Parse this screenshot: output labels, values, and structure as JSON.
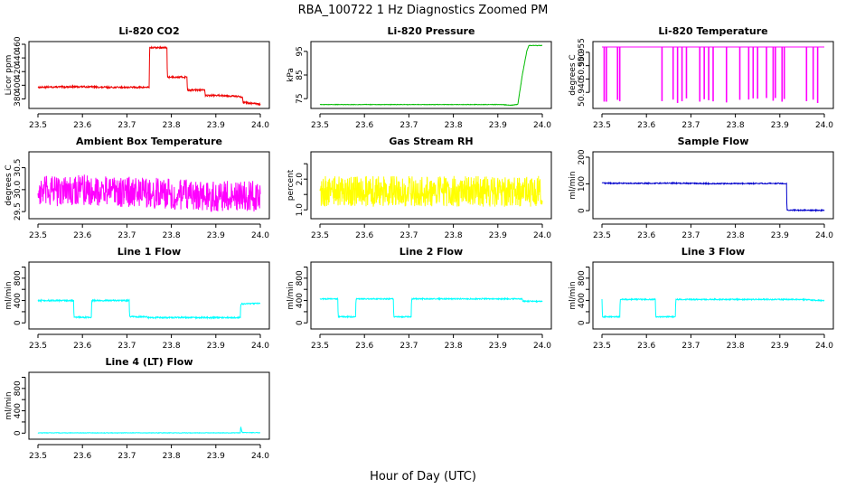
{
  "main_title": "RBA_100722  1 Hz Diagnostics Zoomed PM",
  "x_axis_label": "Hour of Day (UTC)",
  "colors": {
    "red": "#ee0000",
    "green": "#00bb00",
    "magenta": "#ff00ff",
    "yellow": "#ffff00",
    "blue": "#0000cc",
    "cyan": "#00ffff"
  },
  "chart_data": [
    {
      "type": "line",
      "title": "Li-820 CO2",
      "ylabel": "Licor ppm",
      "color": "red",
      "xlim": [
        23.5,
        24.0
      ],
      "ylim": [
        370,
        460
      ],
      "x_ticks": [
        23.5,
        23.6,
        23.7,
        23.8,
        23.9,
        24.0
      ],
      "y_ticks": [
        380,
        400,
        420,
        440,
        460
      ],
      "x_tick_labels": [
        "23.5",
        "23.6",
        "23.7",
        "23.8",
        "23.9",
        "24.0"
      ],
      "y_tick_labels": [
        "380",
        "400",
        "420",
        "440",
        "460"
      ],
      "noise": 1.2,
      "segments": [
        [
          23.5,
          397
        ],
        [
          23.6,
          398
        ],
        [
          23.65,
          397
        ],
        [
          23.75,
          397
        ],
        [
          23.751,
          455
        ],
        [
          23.79,
          455
        ],
        [
          23.791,
          412
        ],
        [
          23.835,
          412
        ],
        [
          23.836,
          393
        ],
        [
          23.875,
          393
        ],
        [
          23.876,
          385
        ],
        [
          23.92,
          385
        ],
        [
          23.96,
          383
        ],
        [
          23.961,
          375
        ],
        [
          24.0,
          372
        ]
      ]
    },
    {
      "type": "line",
      "title": "Li-820 Pressure",
      "ylabel": "kPa",
      "color": "green",
      "xlim": [
        23.5,
        24.0
      ],
      "ylim": [
        72,
        98
      ],
      "x_ticks": [
        23.5,
        23.6,
        23.7,
        23.8,
        23.9,
        24.0
      ],
      "y_ticks": [
        75,
        85,
        95
      ],
      "x_tick_labels": [
        "23.5",
        "23.6",
        "23.7",
        "23.8",
        "23.9",
        "24.0"
      ],
      "y_tick_labels": [
        "75",
        "85",
        "95"
      ],
      "noise": 0.1,
      "segments": [
        [
          23.5,
          72.5
        ],
        [
          23.91,
          72.5
        ],
        [
          23.93,
          72.2
        ],
        [
          23.945,
          72.6
        ],
        [
          23.955,
          85
        ],
        [
          23.965,
          95
        ],
        [
          23.97,
          97.5
        ],
        [
          24.0,
          97.5
        ]
      ]
    },
    {
      "type": "line",
      "title": "Li-820 Temperature",
      "ylabel": "degrees C",
      "color": "magenta",
      "xlim": [
        23.5,
        24.0
      ],
      "ylim": [
        50.935,
        50.958
      ],
      "x_ticks": [
        23.5,
        23.6,
        23.7,
        23.8,
        23.9,
        24.0
      ],
      "y_ticks": [
        50.94,
        50.945,
        50.95,
        50.955
      ],
      "x_tick_labels": [
        "23.5",
        "23.6",
        "23.7",
        "23.8",
        "23.9",
        "24.0"
      ],
      "y_tick_labels": [
        "50.940",
        "",
        "50.950",
        "50.955"
      ],
      "noise": 0,
      "segments": [
        [
          23.5,
          50.957
        ],
        [
          24.0,
          50.957
        ]
      ]
    },
    {
      "type": "line",
      "title": "Ambient Box Temperature",
      "ylabel": "degrees C",
      "color": "magenta",
      "xlim": [
        23.5,
        24.0
      ],
      "ylim": [
        29.4,
        30.8
      ],
      "x_ticks": [
        23.5,
        23.6,
        23.7,
        23.8,
        23.9,
        24.0
      ],
      "y_ticks": [
        29.5,
        30.0,
        30.5
      ],
      "x_tick_labels": [
        "23.5",
        "23.6",
        "23.7",
        "23.8",
        "23.9",
        "24.0"
      ],
      "y_tick_labels": [
        "29.5",
        "30.0",
        "30.5"
      ],
      "noise": 0.35,
      "segments": [
        [
          23.5,
          29.95
        ],
        [
          23.6,
          30.0
        ],
        [
          23.7,
          29.95
        ],
        [
          23.8,
          29.9
        ],
        [
          23.9,
          29.85
        ],
        [
          24.0,
          29.85
        ]
      ]
    },
    {
      "type": "line",
      "title": "Gas Stream RH",
      "ylabel": "percent",
      "color": "yellow",
      "xlim": [
        23.5,
        24.0
      ],
      "ylim": [
        0.8,
        2.8
      ],
      "x_ticks": [
        23.5,
        23.6,
        23.7,
        23.8,
        23.9,
        24.0
      ],
      "y_ticks": [
        1.0,
        1.5,
        2.0,
        2.5
      ],
      "x_tick_labels": [
        "23.5",
        "23.6",
        "23.7",
        "23.8",
        "23.9",
        "24.0"
      ],
      "y_tick_labels": [
        "1.0",
        "",
        "2.0",
        ""
      ],
      "noise": 0.5,
      "segments": [
        [
          23.5,
          1.6
        ],
        [
          24.0,
          1.6
        ]
      ]
    },
    {
      "type": "line",
      "title": "Sample Flow",
      "ylabel": "ml/min",
      "color": "blue",
      "xlim": [
        23.5,
        24.0
      ],
      "ylim": [
        -20,
        210
      ],
      "x_ticks": [
        23.5,
        23.6,
        23.7,
        23.8,
        23.9,
        24.0
      ],
      "y_ticks": [
        0,
        100,
        200
      ],
      "x_tick_labels": [
        "23.5",
        "23.6",
        "23.7",
        "23.8",
        "23.9",
        "24.0"
      ],
      "y_tick_labels": [
        "0",
        "100",
        "200"
      ],
      "noise": 2,
      "segments": [
        [
          23.5,
          103
        ],
        [
          23.6,
          102
        ],
        [
          23.65,
          103
        ],
        [
          23.75,
          101
        ],
        [
          23.9,
          102
        ],
        [
          23.915,
          100
        ],
        [
          23.916,
          2
        ],
        [
          24.0,
          1
        ]
      ]
    },
    {
      "type": "line",
      "title": "Line 1 Flow",
      "ylabel": "ml/min",
      "color": "cyan",
      "xlim": [
        23.5,
        24.0
      ],
      "ylim": [
        -60,
        1040
      ],
      "x_ticks": [
        23.5,
        23.6,
        23.7,
        23.8,
        23.9,
        24.0
      ],
      "y_ticks": [
        0,
        200,
        400,
        600,
        800,
        1000
      ],
      "x_tick_labels": [
        "23.5",
        "23.6",
        "23.7",
        "23.8",
        "23.9",
        "24.0"
      ],
      "y_tick_labels": [
        "0",
        "",
        "400",
        "",
        "800",
        ""
      ],
      "noise": 12,
      "segments": [
        [
          23.5,
          400
        ],
        [
          23.58,
          400
        ],
        [
          23.581,
          100
        ],
        [
          23.62,
          100
        ],
        [
          23.621,
          400
        ],
        [
          23.705,
          400
        ],
        [
          23.706,
          110
        ],
        [
          23.745,
          110
        ],
        [
          23.746,
          95
        ],
        [
          23.955,
          95
        ],
        [
          23.956,
          340
        ],
        [
          24.0,
          350
        ]
      ]
    },
    {
      "type": "line",
      "title": "Line 2 Flow",
      "ylabel": "ml/min",
      "color": "cyan",
      "xlim": [
        23.5,
        24.0
      ],
      "ylim": [
        -60,
        1040
      ],
      "x_ticks": [
        23.5,
        23.6,
        23.7,
        23.8,
        23.9,
        24.0
      ],
      "y_ticks": [
        0,
        200,
        400,
        600,
        800,
        1000
      ],
      "x_tick_labels": [
        "23.5",
        "23.6",
        "23.7",
        "23.8",
        "23.9",
        "24.0"
      ],
      "y_tick_labels": [
        "0",
        "",
        "400",
        "",
        "800",
        ""
      ],
      "noise": 10,
      "segments": [
        [
          23.5,
          430
        ],
        [
          23.54,
          430
        ],
        [
          23.541,
          110
        ],
        [
          23.58,
          110
        ],
        [
          23.581,
          430
        ],
        [
          23.665,
          430
        ],
        [
          23.666,
          110
        ],
        [
          23.705,
          110
        ],
        [
          23.706,
          430
        ],
        [
          23.955,
          430
        ],
        [
          23.956,
          390
        ],
        [
          24.0,
          385
        ]
      ]
    },
    {
      "type": "line",
      "title": "Line 3 Flow",
      "ylabel": "ml/min",
      "color": "cyan",
      "xlim": [
        23.5,
        24.0
      ],
      "ylim": [
        -60,
        1040
      ],
      "x_ticks": [
        23.5,
        23.6,
        23.7,
        23.8,
        23.9,
        24.0
      ],
      "y_ticks": [
        0,
        200,
        400,
        600,
        800,
        1000
      ],
      "x_tick_labels": [
        "23.5",
        "23.6",
        "23.7",
        "23.8",
        "23.9",
        "24.0"
      ],
      "y_tick_labels": [
        "0",
        "",
        "400",
        "",
        "800",
        ""
      ],
      "noise": 10,
      "segments": [
        [
          23.5,
          420
        ],
        [
          23.501,
          110
        ],
        [
          23.54,
          110
        ],
        [
          23.541,
          420
        ],
        [
          23.62,
          420
        ],
        [
          23.621,
          110
        ],
        [
          23.665,
          110
        ],
        [
          23.666,
          420
        ],
        [
          23.95,
          420
        ],
        [
          24.0,
          395
        ]
      ]
    },
    {
      "type": "line",
      "title": "Line 4 (LT) Flow",
      "ylabel": "ml/min",
      "color": "cyan",
      "xlim": [
        23.5,
        24.0
      ],
      "ylim": [
        -60,
        1040
      ],
      "x_ticks": [
        23.5,
        23.6,
        23.7,
        23.8,
        23.9,
        24.0
      ],
      "y_ticks": [
        0,
        200,
        400,
        600,
        800,
        1000
      ],
      "x_tick_labels": [
        "23.5",
        "23.6",
        "23.7",
        "23.8",
        "23.9",
        "24.0"
      ],
      "y_tick_labels": [
        "0",
        "",
        "400",
        "",
        "800",
        ""
      ],
      "noise": 4,
      "segments": [
        [
          23.5,
          5
        ],
        [
          23.955,
          5
        ],
        [
          23.956,
          120
        ],
        [
          23.958,
          40
        ],
        [
          23.96,
          10
        ],
        [
          24.0,
          8
        ]
      ]
    }
  ]
}
